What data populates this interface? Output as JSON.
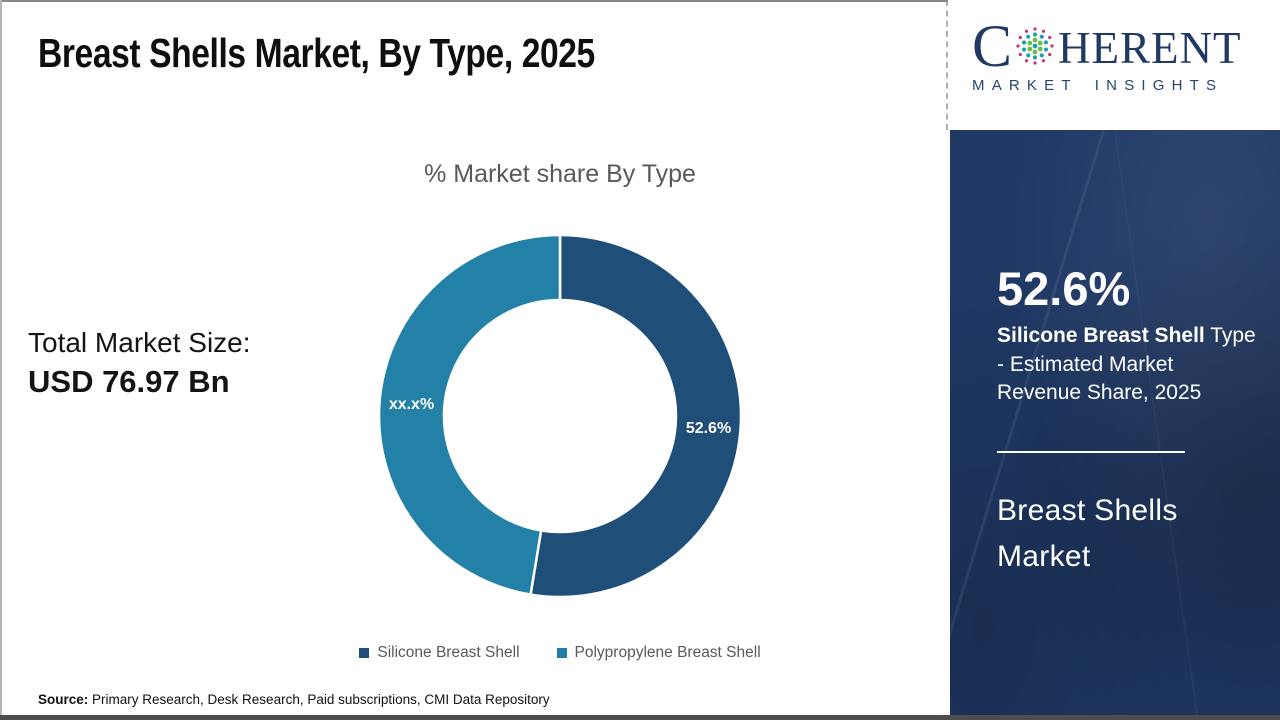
{
  "header": {
    "title": "Breast Shells Market, By Type, 2025"
  },
  "logo": {
    "word_start": "C",
    "word_rest": "HERENT",
    "subtitle": "MARKET INSIGHTS",
    "colors": {
      "navy": "#1F3864",
      "teal": "#1C9FB0",
      "green": "#6ABF4B",
      "magenta": "#C9307F"
    }
  },
  "left_panel": {
    "total_label": "Total Market Size:",
    "total_value": "USD 76.97 Bn"
  },
  "chart_data": {
    "type": "pie",
    "variant": "donut",
    "title": "% Market share By Type",
    "start_angle_deg": 0,
    "direction": "clockwise",
    "legend_position": "bottom",
    "slices": [
      {
        "label": "Silicone Breast Shell",
        "value": 52.6,
        "display_label": "52.6%",
        "color": "#1F4E79"
      },
      {
        "label": "Polypropylene Breast Shell",
        "value": 47.4,
        "display_label": "xx.x%",
        "color": "#2381A8"
      }
    ]
  },
  "sidebar": {
    "bg_color": "#1F3864",
    "stat_value": "52.6%",
    "stat_bold": "Silicone Breast Shell",
    "stat_line1_rest": " Type",
    "stat_line2": "- Estimated Market",
    "stat_line3": "Revenue Share, 2025",
    "title_line1": "Breast Shells",
    "title_line2": "Market"
  },
  "footer": {
    "source_label": "Source:",
    "source_text": " Primary Research, Desk Research, Paid subscriptions, CMI Data Repository"
  }
}
